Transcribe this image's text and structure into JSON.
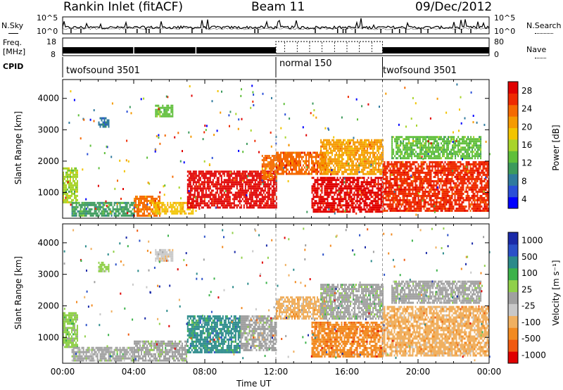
{
  "header": {
    "station": "Rankin Inlet (fitACF)",
    "beam": "Beam 11",
    "date": "09/Dec/2012"
  },
  "left_labels": {
    "nsky": "N.Sky",
    "freq": "Freq.",
    "mhz": "[MHz]",
    "cpid": "CPID"
  },
  "right_labels": {
    "nsearch": "N.Search",
    "nave": "Nave"
  },
  "small_axes": {
    "noise_top": "10^5",
    "noise_bottom": "10^0",
    "freq_top": "18",
    "freq_bottom": "8",
    "nave_top": "80",
    "nave_bottom": "0"
  },
  "cpid": [
    {
      "name": "twofsound 3501",
      "start": 0,
      "end": 12
    },
    {
      "name": "normal 150",
      "start": 12,
      "end": 18
    },
    {
      "name": "twofsound 3501",
      "start": 18,
      "end": 24
    }
  ],
  "x_axis": {
    "label": "Time UT",
    "ticks": [
      "00:00",
      "04:00",
      "08:00",
      "12:00",
      "16:00",
      "20:00",
      "00:00"
    ],
    "range_hours": [
      0,
      24
    ]
  },
  "panels": {
    "power": {
      "ylabel": "Slant Range [km]",
      "cb_label": "Power [dB]",
      "cb_ticks": [
        "28",
        "24",
        "20",
        "16",
        "12",
        "8",
        "4"
      ]
    },
    "velocity": {
      "ylabel": "Slant Range [km]",
      "cb_label": "Velocity [m s⁻¹]",
      "cb_ticks": [
        "1000",
        "500",
        "100",
        "25",
        "-25",
        "-100",
        "-500",
        "-1000"
      ]
    }
  },
  "y_axis": {
    "ticks": [
      "4000",
      "3000",
      "2000",
      "1000"
    ],
    "range_km": [
      180,
      4600
    ]
  },
  "colors": {
    "power_scale": [
      "#0000ff",
      "#2a4fd8",
      "#2f7a9e",
      "#3c9a5c",
      "#5fbf3a",
      "#a8d42a",
      "#f2c400",
      "#f59a00",
      "#f56a00",
      "#ee2a00",
      "#e00000"
    ],
    "velocity_scale": [
      "#e00000",
      "#f05a10",
      "#f28a20",
      "#f0b060",
      "#c8c8c8",
      "#a0a0a0",
      "#90d04a",
      "#3cb24a",
      "#2a8a8a",
      "#2a50c8",
      "#1a2aa8"
    ]
  },
  "chart_data": [
    {
      "type": "heatmap",
      "title": "Power",
      "x_unit": "hours UT",
      "y_unit": "km",
      "xlim": [
        0,
        24
      ],
      "ylim": [
        180,
        4600
      ],
      "value_range": [
        0,
        30
      ],
      "patches": [
        {
          "t": [
            0.0,
            0.8
          ],
          "r": [
            700,
            1800
          ],
          "v": 14
        },
        {
          "t": [
            0.5,
            4.0
          ],
          "r": [
            250,
            700
          ],
          "v": 10
        },
        {
          "t": [
            2.0,
            2.6
          ],
          "r": [
            3100,
            3400
          ],
          "v": 8
        },
        {
          "t": [
            4.0,
            5.5
          ],
          "r": [
            250,
            900
          ],
          "v": 22
        },
        {
          "t": [
            5.2,
            6.2
          ],
          "r": [
            3400,
            3800
          ],
          "v": 12
        },
        {
          "t": [
            5.0,
            7.3
          ],
          "r": [
            300,
            700
          ],
          "v": 18
        },
        {
          "t": [
            7.0,
            12.0
          ],
          "r": [
            500,
            1700
          ],
          "v": 28
        },
        {
          "t": [
            11.2,
            12.0
          ],
          "r": [
            1400,
            2200
          ],
          "v": 22
        },
        {
          "t": [
            12.0,
            14.8
          ],
          "r": [
            1600,
            2300
          ],
          "v": 24
        },
        {
          "t": [
            14.5,
            18.0
          ],
          "r": [
            1600,
            2700
          ],
          "v": 20
        },
        {
          "t": [
            14.0,
            18.0
          ],
          "r": [
            400,
            1500
          ],
          "v": 28
        },
        {
          "t": [
            18.0,
            24.0
          ],
          "r": [
            400,
            2000
          ],
          "v": 26
        },
        {
          "t": [
            18.5,
            23.5
          ],
          "r": [
            2100,
            2800
          ],
          "v": 12
        }
      ]
    },
    {
      "type": "heatmap",
      "title": "Velocity",
      "x_unit": "hours UT",
      "y_unit": "km",
      "xlim": [
        0,
        24
      ],
      "ylim": [
        180,
        4600
      ],
      "value_range": [
        -1000,
        1000
      ],
      "patches": [
        {
          "t": [
            0.0,
            0.8
          ],
          "r": [
            700,
            1800
          ],
          "v": 150
        },
        {
          "t": [
            0.5,
            4.0
          ],
          "r": [
            250,
            700
          ],
          "v": 40
        },
        {
          "t": [
            2.0,
            2.6
          ],
          "r": [
            3100,
            3400
          ],
          "v": 100
        },
        {
          "t": [
            4.0,
            7.0
          ],
          "r": [
            250,
            900
          ],
          "v": 10
        },
        {
          "t": [
            5.2,
            6.2
          ],
          "r": [
            3400,
            3800
          ],
          "v": -200
        },
        {
          "t": [
            7.0,
            10.0
          ],
          "r": [
            500,
            1700
          ],
          "v": 500
        },
        {
          "t": [
            10.0,
            12.0
          ],
          "r": [
            600,
            1700
          ],
          "v": -50
        },
        {
          "t": [
            12.0,
            14.8
          ],
          "r": [
            1600,
            2300
          ],
          "v": -300
        },
        {
          "t": [
            14.0,
            18.0
          ],
          "r": [
            400,
            1500
          ],
          "v": -600
        },
        {
          "t": [
            14.5,
            18.0
          ],
          "r": [
            1600,
            2700
          ],
          "v": 80
        },
        {
          "t": [
            18.0,
            24.0
          ],
          "r": [
            400,
            2000
          ],
          "v": -400
        },
        {
          "t": [
            18.5,
            23.5
          ],
          "r": [
            2100,
            2800
          ],
          "v": 10
        }
      ]
    }
  ]
}
